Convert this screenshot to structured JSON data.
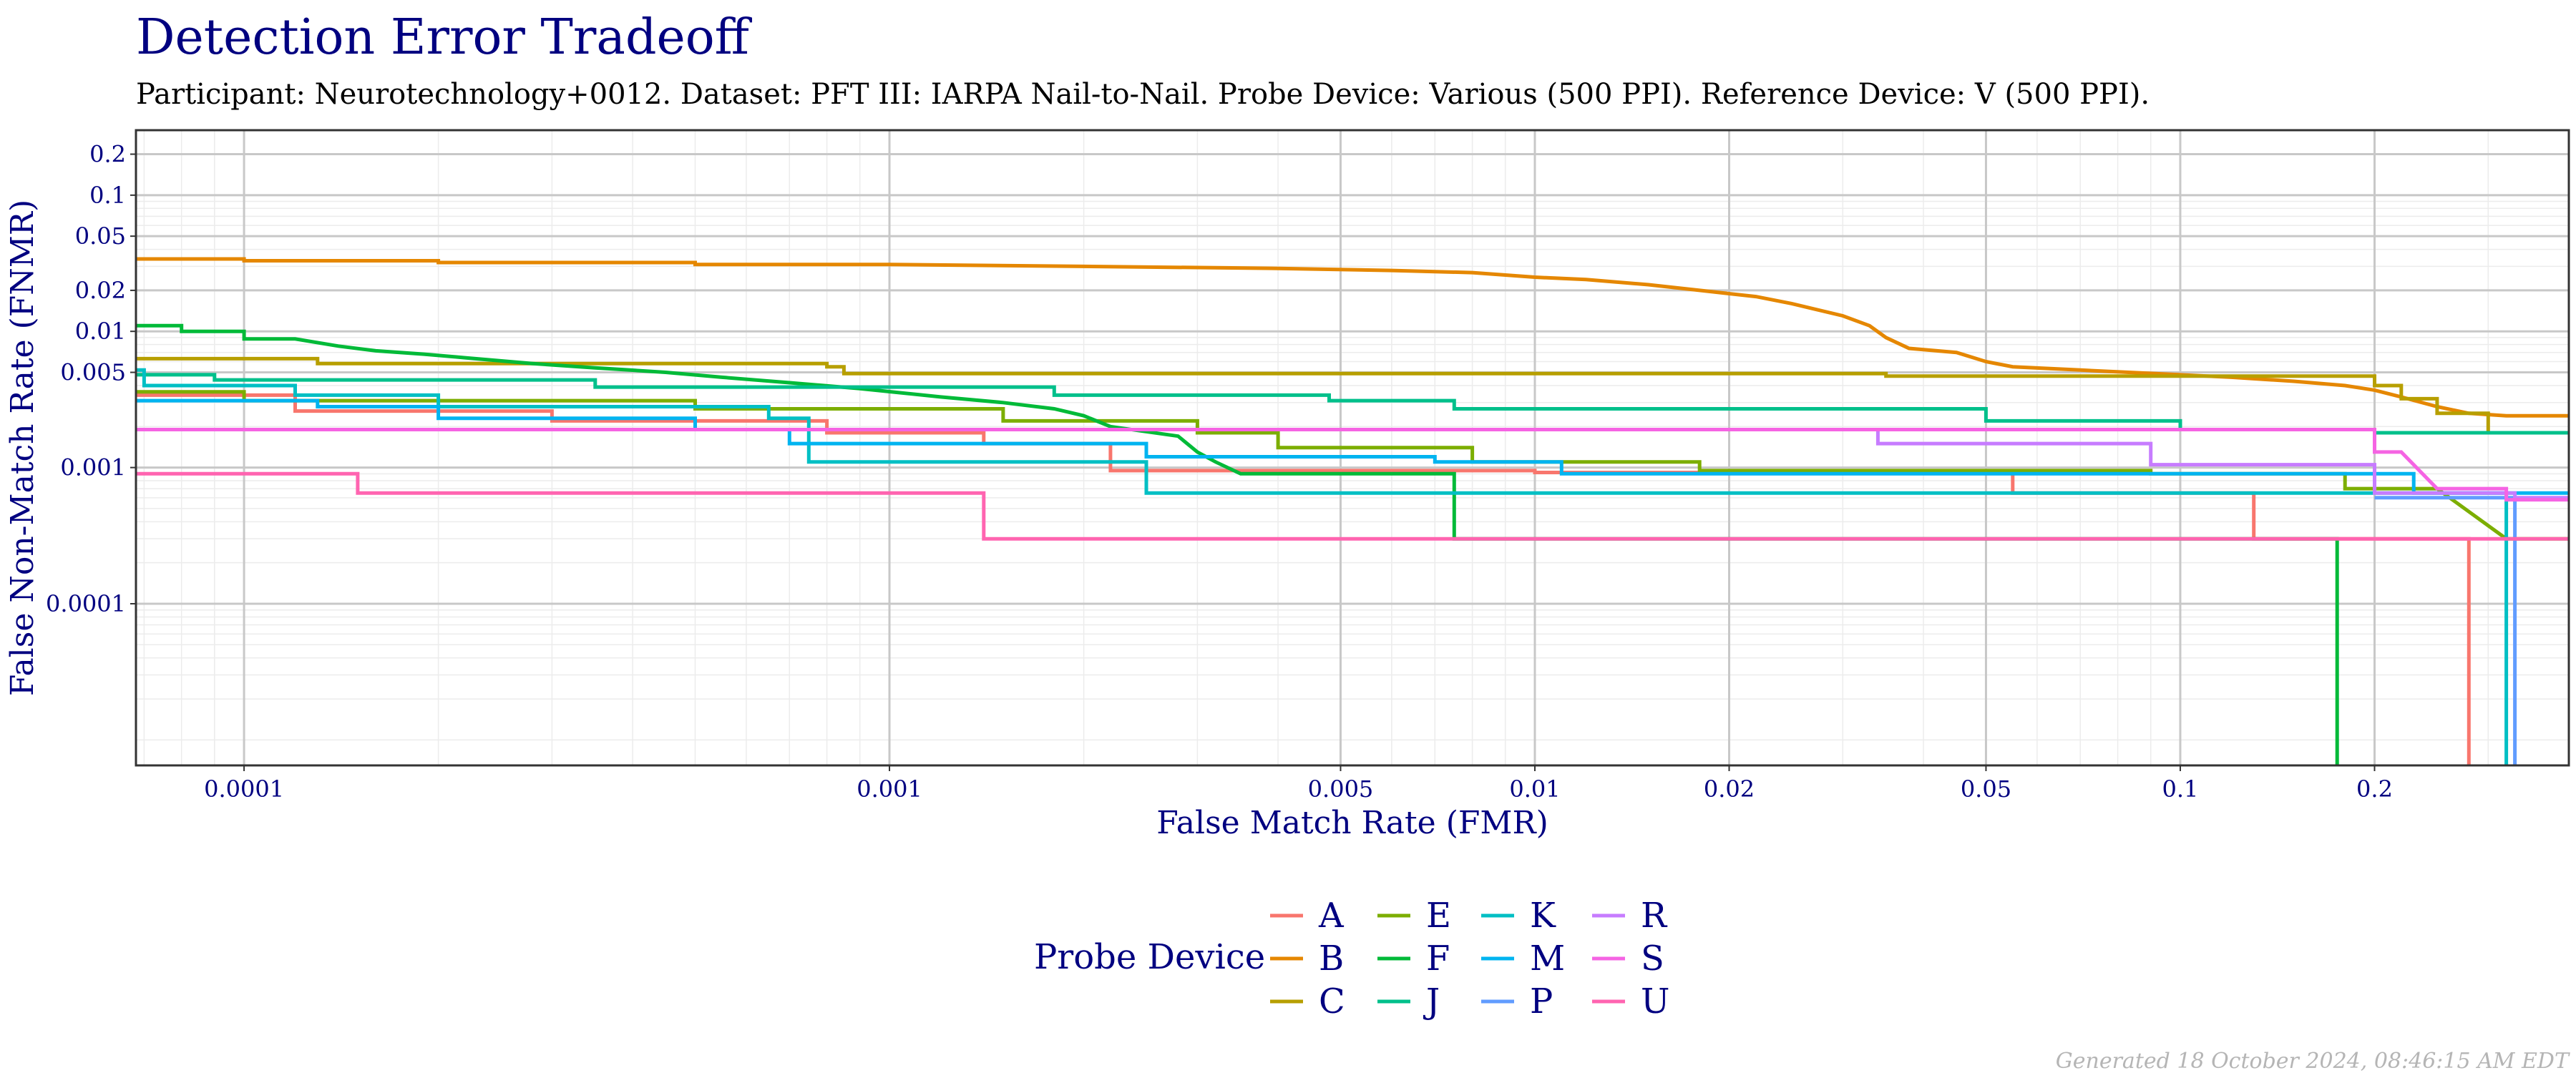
{
  "chart_data": {
    "type": "line",
    "title": "Detection Error Tradeoff",
    "subtitle": "Participant: Neurotechnology+0012. Dataset: PFT III: IARPA Nail-to-Nail. Probe Device: Various (500 PPI). Reference Device: V (500 PPI).",
    "xlabel": "False Match Rate (FMR)",
    "ylabel": "False Non-Match Rate (FNMR)",
    "x_scale": "log",
    "y_scale": "log",
    "xlim": [
      6.8e-05,
      0.4
    ],
    "ylim": [
      6.5e-06,
      0.3
    ],
    "x_ticks": [
      {
        "value": 0.0001,
        "label": "0.0001"
      },
      {
        "value": 0.001,
        "label": "0.001"
      },
      {
        "value": 0.005,
        "label": "0.005"
      },
      {
        "value": 0.01,
        "label": "0.01"
      },
      {
        "value": 0.02,
        "label": "0.02"
      },
      {
        "value": 0.05,
        "label": "0.05"
      },
      {
        "value": 0.1,
        "label": "0.1"
      },
      {
        "value": 0.2,
        "label": "0.2"
      }
    ],
    "y_ticks": [
      {
        "value": 0.0001,
        "label": "0.0001"
      },
      {
        "value": 0.001,
        "label": "0.001"
      },
      {
        "value": 0.005,
        "label": "0.005"
      },
      {
        "value": 0.01,
        "label": "0.01"
      },
      {
        "value": 0.02,
        "label": "0.02"
      },
      {
        "value": 0.05,
        "label": "0.05"
      },
      {
        "value": 0.1,
        "label": "0.1"
      },
      {
        "value": 0.2,
        "label": "0.2"
      }
    ],
    "grid": true,
    "legend": {
      "title": "Probe Device",
      "position": "bottom"
    },
    "series": [
      {
        "name": "A",
        "color": "#F8766D",
        "points": [
          [
            6.8e-05,
            0.0034
          ],
          [
            0.00012,
            0.0034
          ],
          [
            0.00012,
            0.0026
          ],
          [
            0.0003,
            0.0026
          ],
          [
            0.0003,
            0.0022
          ],
          [
            0.0008,
            0.0022
          ],
          [
            0.0008,
            0.0018
          ],
          [
            0.0014,
            0.0018
          ],
          [
            0.0014,
            0.0015
          ],
          [
            0.0022,
            0.0015
          ],
          [
            0.0022,
            0.00095
          ],
          [
            0.01,
            0.00095
          ],
          [
            0.01,
            0.00092
          ],
          [
            0.055,
            0.00092
          ],
          [
            0.055,
            0.00065
          ],
          [
            0.13,
            0.00065
          ],
          [
            0.13,
            0.0003
          ],
          [
            0.28,
            0.0003
          ],
          [
            0.28,
            6.5e-06
          ]
        ]
      },
      {
        "name": "B",
        "color": "#E58700",
        "points": [
          [
            6.8e-05,
            0.034
          ],
          [
            0.0001,
            0.034
          ],
          [
            0.0001,
            0.033
          ],
          [
            0.0002,
            0.033
          ],
          [
            0.0002,
            0.032
          ],
          [
            0.0005,
            0.032
          ],
          [
            0.0005,
            0.031
          ],
          [
            0.001,
            0.031
          ],
          [
            0.002,
            0.03
          ],
          [
            0.004,
            0.029
          ],
          [
            0.006,
            0.028
          ],
          [
            0.008,
            0.027
          ],
          [
            0.01,
            0.025
          ],
          [
            0.012,
            0.024
          ],
          [
            0.015,
            0.022
          ],
          [
            0.018,
            0.02
          ],
          [
            0.022,
            0.018
          ],
          [
            0.025,
            0.016
          ],
          [
            0.03,
            0.013
          ],
          [
            0.033,
            0.011
          ],
          [
            0.035,
            0.009
          ],
          [
            0.038,
            0.0075
          ],
          [
            0.045,
            0.007
          ],
          [
            0.05,
            0.006
          ],
          [
            0.055,
            0.0055
          ],
          [
            0.07,
            0.0052
          ],
          [
            0.1,
            0.0048
          ],
          [
            0.12,
            0.0046
          ],
          [
            0.15,
            0.0043
          ],
          [
            0.18,
            0.004
          ],
          [
            0.2,
            0.0037
          ],
          [
            0.22,
            0.0033
          ],
          [
            0.25,
            0.0028
          ],
          [
            0.28,
            0.0025
          ],
          [
            0.32,
            0.0024
          ],
          [
            0.4,
            0.0024
          ]
        ]
      },
      {
        "name": "C",
        "color": "#B79F00",
        "points": [
          [
            6.8e-05,
            0.0063
          ],
          [
            0.00013,
            0.0063
          ],
          [
            0.00013,
            0.0058
          ],
          [
            0.0008,
            0.0058
          ],
          [
            0.0008,
            0.0055
          ],
          [
            0.00085,
            0.0055
          ],
          [
            0.00085,
            0.0049
          ],
          [
            0.035,
            0.0049
          ],
          [
            0.035,
            0.0047
          ],
          [
            0.2,
            0.0047
          ],
          [
            0.2,
            0.004
          ],
          [
            0.22,
            0.004
          ],
          [
            0.22,
            0.0032
          ],
          [
            0.25,
            0.0032
          ],
          [
            0.25,
            0.0025
          ],
          [
            0.3,
            0.0025
          ],
          [
            0.3,
            0.0018
          ],
          [
            0.4,
            0.0018
          ]
        ]
      },
      {
        "name": "E",
        "color": "#7CAE00",
        "points": [
          [
            6.8e-05,
            0.0036
          ],
          [
            0.0001,
            0.0036
          ],
          [
            0.0001,
            0.0031
          ],
          [
            0.0005,
            0.0031
          ],
          [
            0.0005,
            0.0027
          ],
          [
            0.0015,
            0.0027
          ],
          [
            0.0015,
            0.0022
          ],
          [
            0.003,
            0.0022
          ],
          [
            0.003,
            0.0018
          ],
          [
            0.004,
            0.0018
          ],
          [
            0.004,
            0.0014
          ],
          [
            0.008,
            0.0014
          ],
          [
            0.008,
            0.0011
          ],
          [
            0.018,
            0.0011
          ],
          [
            0.018,
            0.00095
          ],
          [
            0.09,
            0.00095
          ],
          [
            0.09,
            0.0009
          ],
          [
            0.18,
            0.0009
          ],
          [
            0.18,
            0.0007
          ],
          [
            0.25,
            0.0007
          ],
          [
            0.32,
            0.0003
          ],
          [
            0.4,
            0.0003
          ]
        ]
      },
      {
        "name": "F",
        "color": "#00BA38",
        "points": [
          [
            6.8e-05,
            0.011
          ],
          [
            8e-05,
            0.011
          ],
          [
            8e-05,
            0.01
          ],
          [
            0.0001,
            0.01
          ],
          [
            0.0001,
            0.0088
          ],
          [
            0.00012,
            0.0088
          ],
          [
            0.00014,
            0.0078
          ],
          [
            0.00016,
            0.0072
          ],
          [
            0.00019,
            0.0068
          ],
          [
            0.00022,
            0.0064
          ],
          [
            0.00028,
            0.0058
          ],
          [
            0.00035,
            0.0054
          ],
          [
            0.00045,
            0.005
          ],
          [
            0.00055,
            0.0046
          ],
          [
            0.0007,
            0.0042
          ],
          [
            0.0009,
            0.0038
          ],
          [
            0.0012,
            0.0033
          ],
          [
            0.0015,
            0.003
          ],
          [
            0.0018,
            0.0027
          ],
          [
            0.002,
            0.0024
          ],
          [
            0.0022,
            0.002
          ],
          [
            0.0028,
            0.0017
          ],
          [
            0.003,
            0.0013
          ],
          [
            0.0032,
            0.0011
          ],
          [
            0.0035,
            0.0009
          ],
          [
            0.0075,
            0.0009
          ],
          [
            0.0075,
            0.0003
          ],
          [
            0.175,
            0.0003
          ],
          [
            0.175,
            6.5e-06
          ]
        ]
      },
      {
        "name": "J",
        "color": "#00C08B",
        "points": [
          [
            6.8e-05,
            0.0048
          ],
          [
            9e-05,
            0.0048
          ],
          [
            9e-05,
            0.0044
          ],
          [
            0.00035,
            0.0044
          ],
          [
            0.00035,
            0.0039
          ],
          [
            0.0018,
            0.0039
          ],
          [
            0.0018,
            0.0034
          ],
          [
            0.0048,
            0.0034
          ],
          [
            0.0048,
            0.0031
          ],
          [
            0.0075,
            0.0031
          ],
          [
            0.0075,
            0.0027
          ],
          [
            0.05,
            0.0027
          ],
          [
            0.05,
            0.0022
          ],
          [
            0.1,
            0.0022
          ],
          [
            0.1,
            0.0019
          ],
          [
            0.2,
            0.0019
          ],
          [
            0.2,
            0.0018
          ],
          [
            0.4,
            0.0018
          ]
        ]
      },
      {
        "name": "K",
        "color": "#00BFC4",
        "points": [
          [
            6.8e-05,
            0.0052
          ],
          [
            7e-05,
            0.0052
          ],
          [
            7e-05,
            0.004
          ],
          [
            0.00012,
            0.004
          ],
          [
            0.00012,
            0.0034
          ],
          [
            0.0002,
            0.0034
          ],
          [
            0.0002,
            0.0028
          ],
          [
            0.00065,
            0.0028
          ],
          [
            0.00065,
            0.0023
          ],
          [
            0.00075,
            0.0023
          ],
          [
            0.00075,
            0.0011
          ],
          [
            0.0025,
            0.0011
          ],
          [
            0.0025,
            0.00065
          ],
          [
            0.32,
            0.00065
          ],
          [
            0.32,
            6.5e-06
          ]
        ]
      },
      {
        "name": "M",
        "color": "#00B4F0",
        "points": [
          [
            6.8e-05,
            0.0031
          ],
          [
            0.00013,
            0.0031
          ],
          [
            0.00013,
            0.0028
          ],
          [
            0.0002,
            0.0028
          ],
          [
            0.0002,
            0.0023
          ],
          [
            0.0005,
            0.0023
          ],
          [
            0.0005,
            0.0019
          ],
          [
            0.0007,
            0.0019
          ],
          [
            0.0007,
            0.0015
          ],
          [
            0.0025,
            0.0015
          ],
          [
            0.0025,
            0.0012
          ],
          [
            0.007,
            0.0012
          ],
          [
            0.007,
            0.0011
          ],
          [
            0.011,
            0.0011
          ],
          [
            0.011,
            0.0009
          ],
          [
            0.23,
            0.0009
          ],
          [
            0.23,
            0.00065
          ],
          [
            0.4,
            0.00065
          ]
        ]
      },
      {
        "name": "P",
        "color": "#619CFF",
        "points": [
          [
            0.2,
            0.0006
          ],
          [
            0.33,
            0.0006
          ],
          [
            0.33,
            6.5e-06
          ]
        ]
      },
      {
        "name": "R",
        "color": "#C77CFF",
        "points": [
          [
            6.8e-05,
            0.0019
          ],
          [
            0.034,
            0.0019
          ],
          [
            0.034,
            0.0015
          ],
          [
            0.09,
            0.0015
          ],
          [
            0.09,
            0.00105
          ],
          [
            0.2,
            0.00105
          ],
          [
            0.2,
            0.00065
          ],
          [
            0.33,
            0.00065
          ],
          [
            0.33,
            0.0006
          ],
          [
            0.4,
            0.0006
          ]
        ]
      },
      {
        "name": "S",
        "color": "#F564E3",
        "points": [
          [
            6.8e-05,
            0.0019
          ],
          [
            0.2,
            0.0019
          ],
          [
            0.2,
            0.0013
          ],
          [
            0.22,
            0.0013
          ],
          [
            0.25,
            0.0007
          ],
          [
            0.32,
            0.0007
          ],
          [
            0.32,
            0.00058
          ],
          [
            0.4,
            0.00058
          ]
        ]
      },
      {
        "name": "U",
        "color": "#FF64B0",
        "points": [
          [
            6.8e-05,
            0.0009
          ],
          [
            0.00015,
            0.0009
          ],
          [
            0.00015,
            0.00065
          ],
          [
            0.0014,
            0.00065
          ],
          [
            0.0014,
            0.0003
          ],
          [
            0.4,
            0.0003
          ]
        ]
      }
    ]
  },
  "footer": "Generated 18 October 2024, 08:46:15 AM EDT"
}
